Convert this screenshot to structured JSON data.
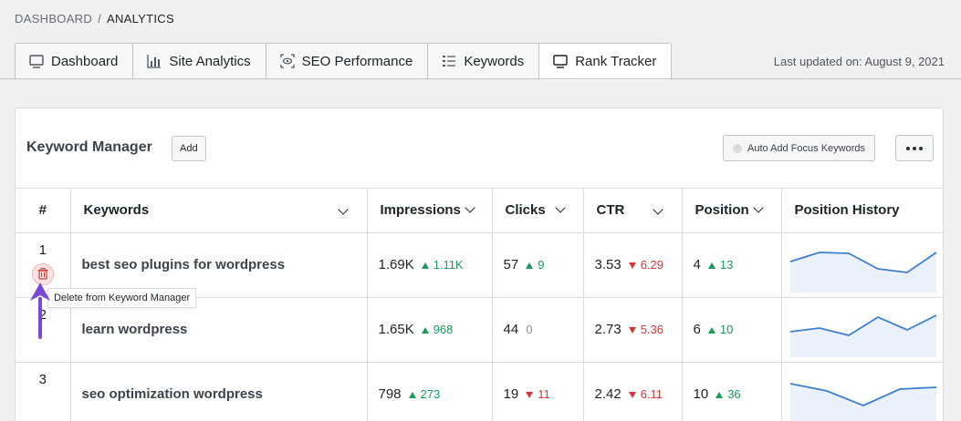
{
  "breadcrumb": {
    "root": "DASHBOARD",
    "separator": "/",
    "current": "ANALYTICS"
  },
  "tabs": [
    {
      "label": "Dashboard",
      "icon": "monitor-icon",
      "active": false
    },
    {
      "label": "Site Analytics",
      "icon": "bar-chart-icon",
      "active": false
    },
    {
      "label": "SEO Performance",
      "icon": "eye-scan-icon",
      "active": false
    },
    {
      "label": "Keywords",
      "icon": "list-icon",
      "active": false
    },
    {
      "label": "Rank Tracker",
      "icon": "monitor-icon",
      "active": true
    }
  ],
  "last_updated": "Last updated on: August 9, 2021",
  "panel": {
    "title": "Keyword Manager",
    "add_label": "Add",
    "auto_add_label": "Auto Add Focus Keywords"
  },
  "table": {
    "headers": {
      "num": "#",
      "keywords": "Keywords",
      "impressions": "Impressions",
      "clicks": "Clicks",
      "ctr": "CTR",
      "position": "Position",
      "history": "Position History"
    },
    "rows": [
      {
        "idx": "1",
        "keyword": "best seo plugins for wordpress",
        "impressions": "1.69K",
        "impressions_delta": "1.11K",
        "impressions_dir": "up",
        "clicks": "57",
        "clicks_delta": "9",
        "clicks_dir": "up",
        "ctr": "3.53",
        "ctr_delta": "6.29",
        "ctr_dir": "down",
        "position": "4",
        "position_delta": "13",
        "position_dir": "up",
        "history": [
          18,
          8,
          9,
          26,
          30,
          8
        ]
      },
      {
        "idx": "2",
        "keyword": "learn wordpress",
        "impressions": "1.65K",
        "impressions_delta": "968",
        "impressions_dir": "up",
        "clicks": "44",
        "clicks_delta": "0",
        "clicks_dir": "neutral",
        "ctr": "2.73",
        "ctr_delta": "5.36",
        "ctr_dir": "down",
        "position": "6",
        "position_delta": "10",
        "position_dir": "up",
        "history": [
          24,
          20,
          28,
          8,
          22,
          6
        ]
      },
      {
        "idx": "3",
        "keyword": "seo optimization wordpress",
        "impressions": "798",
        "impressions_delta": "273",
        "impressions_dir": "up",
        "clicks": "19",
        "clicks_delta": "11",
        "clicks_dir": "down",
        "ctr": "2.42",
        "ctr_delta": "6.11",
        "ctr_dir": "down",
        "position": "10",
        "position_delta": "36",
        "position_dir": "up",
        "history": [
          10,
          18,
          34,
          16,
          14
        ]
      }
    ]
  },
  "tooltip": "Delete from Keyword Manager",
  "colors": {
    "up": "#1a9b5a",
    "down": "#d63638",
    "sparkline": "#3f7fd0",
    "arrow": "#7b48d6"
  }
}
